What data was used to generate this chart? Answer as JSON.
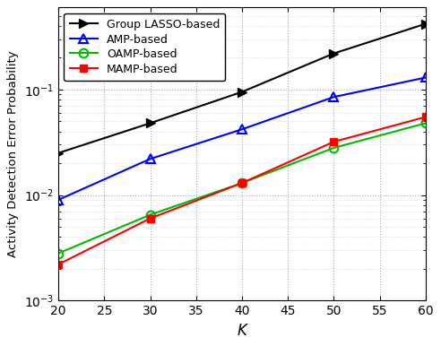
{
  "x": [
    20,
    30,
    40,
    50,
    60
  ],
  "group_lasso": [
    0.025,
    0.048,
    0.095,
    0.22,
    0.42
  ],
  "amp": [
    0.009,
    0.022,
    0.042,
    0.085,
    0.13
  ],
  "oamp": [
    0.0028,
    0.0065,
    0.013,
    0.028,
    0.048
  ],
  "mamp": [
    0.0022,
    0.006,
    0.013,
    0.032,
    0.055
  ],
  "group_lasso_color": "#000000",
  "amp_color": "#0000ff",
  "oamp_color": "#00bb00",
  "mamp_color": "#ff0000",
  "xlabel": "K",
  "ylabel": "Activity Detection Error Probability",
  "xlim": [
    20,
    60
  ],
  "ylim": [
    0.001,
    0.6
  ],
  "legend_labels": [
    "Group LASSO-based",
    "AMP-based",
    "OAMP-based",
    "MAMP-based"
  ],
  "background_color": "#ffffff"
}
